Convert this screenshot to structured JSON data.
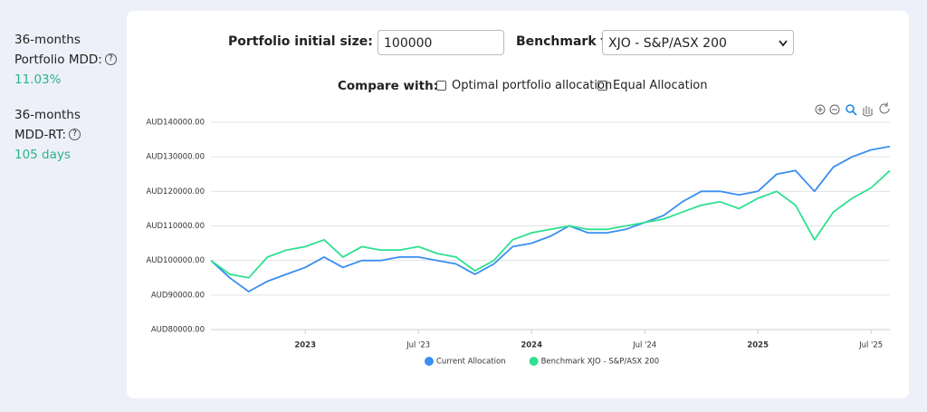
{
  "sidebar": {
    "items": [
      {
        "line1": "36-months",
        "line2": "Portfolio MDD:",
        "value": "11.03%"
      },
      {
        "line1": "36-months",
        "line2": "MDD-RT:",
        "value": "105 days"
      }
    ]
  },
  "controls": {
    "initial_size_label": "Portfolio initial size: AUD",
    "initial_size_value": "100000",
    "benchmark_label": "Benchmark to:",
    "benchmark_value": "XJO - S&P/ASX 200",
    "compare_label": "Compare with:",
    "compare_options": [
      "Optimal portfolio allocation",
      "Equal Allocation"
    ]
  },
  "chart_data": {
    "type": "line",
    "x": [
      "2022-08",
      "2022-09",
      "2022-10",
      "2022-11",
      "2022-12",
      "2023-01",
      "2023-02",
      "2023-03",
      "2023-04",
      "2023-05",
      "2023-06",
      "2023-07",
      "2023-08",
      "2023-09",
      "2023-10",
      "2023-11",
      "2023-12",
      "2024-01",
      "2024-02",
      "2024-03",
      "2024-04",
      "2024-05",
      "2024-06",
      "2024-07",
      "2024-08",
      "2024-09",
      "2024-10",
      "2024-11",
      "2024-12",
      "2025-01",
      "2025-02",
      "2025-03",
      "2025-04",
      "2025-05",
      "2025-06",
      "2025-07",
      "2025-08"
    ],
    "series": [
      {
        "name": "Current Allocation",
        "color": "#3a8ef0",
        "values": [
          100000,
          95000,
          91000,
          94000,
          96000,
          98000,
          101000,
          98000,
          100000,
          100000,
          101000,
          101000,
          100000,
          99000,
          96000,
          99000,
          104000,
          105000,
          107000,
          110000,
          108000,
          108000,
          109000,
          111000,
          113000,
          117000,
          120000,
          120000,
          119000,
          120000,
          125000,
          126000,
          120000,
          127000,
          130000,
          132000,
          133000
        ]
      },
      {
        "name": "Benchmark XJO - S&P/ASX 200",
        "color": "#2ee08f",
        "values": [
          100000,
          96000,
          95000,
          101000,
          103000,
          104000,
          106000,
          101000,
          104000,
          103000,
          103000,
          104000,
          102000,
          101000,
          97000,
          100000,
          106000,
          108000,
          109000,
          110000,
          109000,
          109000,
          110000,
          111000,
          112000,
          114000,
          116000,
          117000,
          115000,
          118000,
          120000,
          116000,
          106000,
          114000,
          118000,
          121000,
          126000
        ]
      }
    ],
    "xlim": [
      "2022-08",
      "2025-08"
    ],
    "xticks": [
      {
        "value": "2023-01",
        "label": "2023"
      },
      {
        "value": "2023-07",
        "label": "Jul '23"
      },
      {
        "value": "2024-01",
        "label": "2024"
      },
      {
        "value": "2024-07",
        "label": "Jul '24"
      },
      {
        "value": "2025-01",
        "label": "2025"
      },
      {
        "value": "2025-07",
        "label": "Jul '25"
      }
    ],
    "ylim": [
      80000,
      140000
    ],
    "yticks": [
      {
        "value": 80000,
        "label": "AUD80000.00"
      },
      {
        "value": 90000,
        "label": "AUD90000.00"
      },
      {
        "value": 100000,
        "label": "AUD100000.00"
      },
      {
        "value": 110000,
        "label": "AUD110000.00"
      },
      {
        "value": 120000,
        "label": "AUD120000.00"
      },
      {
        "value": 130000,
        "label": "AUD130000.00"
      },
      {
        "value": 140000,
        "label": "AUD140000.00"
      }
    ],
    "grid": true,
    "legend": "bottom"
  }
}
